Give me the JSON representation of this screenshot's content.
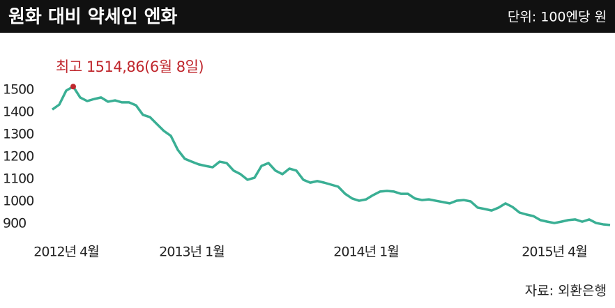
{
  "chart_data": {
    "type": "line",
    "title": "원화 대비 약세인 엔화",
    "unit": "단위: 100엔당 원",
    "annotation": "최고 1514,86(6월 8일)",
    "source": "자료: 외환은행",
    "x": [
      null,
      null,
      "2012년 4월",
      null,
      null,
      null,
      null,
      null,
      null,
      null,
      null,
      null,
      null,
      null,
      null,
      null,
      null,
      null,
      null,
      null,
      "2013년 1월",
      null,
      null,
      null,
      null,
      null,
      null,
      null,
      null,
      null,
      null,
      null,
      null,
      null,
      null,
      null,
      null,
      null,
      null,
      null,
      null,
      null,
      null,
      null,
      null,
      "2014년 1월",
      null,
      null,
      null,
      null,
      null,
      null,
      null,
      null,
      null,
      null,
      null,
      null,
      null,
      null,
      null,
      null,
      null,
      null,
      null,
      null,
      null,
      null,
      null,
      null,
      null,
      null,
      "2015년 4월",
      null,
      null,
      null,
      null,
      null,
      null,
      null,
      null
    ],
    "series": [
      {
        "color": "#3aaf94",
        "values": [
          1412,
          1434,
          1497,
          1514.86,
          1466,
          1450,
          1459,
          1466,
          1447,
          1453,
          1444,
          1444,
          1431,
          1388,
          1378,
          1347,
          1316,
          1294,
          1231,
          1191,
          1178,
          1166,
          1159,
          1153,
          1178,
          1172,
          1138,
          1122,
          1097,
          1106,
          1159,
          1172,
          1138,
          1122,
          1147,
          1138,
          1097,
          1084,
          1091,
          1084,
          1075,
          1066,
          1034,
          1013,
          1003,
          1009,
          1028,
          1044,
          1047,
          1044,
          1034,
          1034,
          1013,
          1006,
          1009,
          1003,
          997,
          991,
          1003,
          1006,
          1000,
          972,
          966,
          959,
          972,
          991,
          975,
          950,
          941,
          934,
          916,
          909,
          903,
          909,
          916,
          919,
          909,
          919,
          903,
          897,
          894
        ]
      }
    ],
    "ylim": [
      870,
      1530
    ],
    "yticks": [
      900,
      1000,
      1100,
      1200,
      1300,
      1400,
      1500
    ],
    "grid": false,
    "annotation_color": "#c0272d"
  }
}
